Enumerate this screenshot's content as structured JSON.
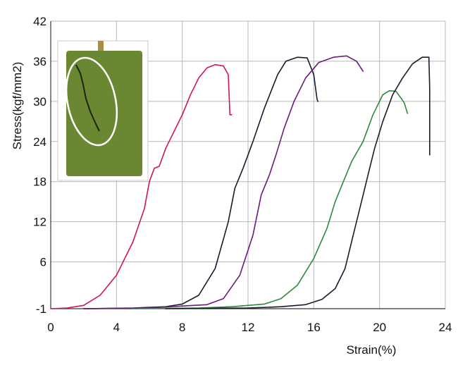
{
  "chart_data": {
    "type": "line",
    "title": "",
    "xlabel": "Strain(%)",
    "ylabel": "Stress(kgf/mm2)",
    "xlim": [
      0,
      24
    ],
    "ylim": [
      -1,
      42
    ],
    "xticks": [
      0,
      4,
      8,
      12,
      16,
      20,
      24
    ],
    "yticks": [
      -1,
      6,
      12,
      18,
      24,
      30,
      36,
      42
    ],
    "grid": true,
    "legend": "none",
    "series": [
      {
        "color": "#d0184b",
        "points": [
          [
            0,
            -1
          ],
          [
            1,
            -0.9
          ],
          [
            2,
            -0.5
          ],
          [
            3,
            1
          ],
          [
            4,
            4
          ],
          [
            5,
            9
          ],
          [
            5.7,
            14
          ],
          [
            6,
            18
          ],
          [
            6.3,
            20
          ],
          [
            6.6,
            20.3
          ],
          [
            7,
            23
          ],
          [
            8,
            28
          ],
          [
            8.5,
            31
          ],
          [
            9,
            33.5
          ],
          [
            9.5,
            35
          ],
          [
            10,
            35.5
          ],
          [
            10.5,
            35.3
          ],
          [
            10.8,
            34
          ],
          [
            10.9,
            28
          ],
          [
            11,
            28
          ]
        ]
      },
      {
        "color": "#1a1a2e",
        "points": [
          [
            2,
            -1
          ],
          [
            5,
            -0.9
          ],
          [
            7,
            -0.7
          ],
          [
            8,
            -0.3
          ],
          [
            9,
            1
          ],
          [
            10,
            5
          ],
          [
            10.8,
            12
          ],
          [
            11.2,
            17
          ],
          [
            11.7,
            20
          ],
          [
            12.3,
            24
          ],
          [
            13,
            29
          ],
          [
            13.8,
            34
          ],
          [
            14.3,
            36
          ],
          [
            15,
            36.6
          ],
          [
            15.6,
            36.5
          ],
          [
            16,
            34
          ],
          [
            16.2,
            30.3
          ],
          [
            16.25,
            30
          ]
        ]
      },
      {
        "color": "#6b1a7a",
        "points": [
          [
            2,
            -1
          ],
          [
            6,
            -0.9
          ],
          [
            8,
            -0.6
          ],
          [
            9.5,
            -0.4
          ],
          [
            10.5,
            0.5
          ],
          [
            11.5,
            4
          ],
          [
            12.3,
            10
          ],
          [
            12.8,
            16
          ],
          [
            13.3,
            19
          ],
          [
            13.7,
            22
          ],
          [
            14.2,
            26
          ],
          [
            14.8,
            30
          ],
          [
            15.5,
            33.5
          ],
          [
            16.3,
            35.8
          ],
          [
            17.2,
            36.6
          ],
          [
            18,
            36.8
          ],
          [
            18.6,
            36
          ],
          [
            19,
            34.5
          ]
        ]
      },
      {
        "color": "#2b8a3e",
        "points": [
          [
            5,
            -1
          ],
          [
            9,
            -0.9
          ],
          [
            11,
            -0.7
          ],
          [
            13,
            -0.3
          ],
          [
            14,
            0.5
          ],
          [
            15,
            2.5
          ],
          [
            16,
            6.5
          ],
          [
            16.8,
            11
          ],
          [
            17.3,
            15
          ],
          [
            17.8,
            18
          ],
          [
            18.3,
            21
          ],
          [
            19,
            24
          ],
          [
            19.6,
            28
          ],
          [
            20.2,
            31
          ],
          [
            20.6,
            31.6
          ],
          [
            21,
            31.5
          ],
          [
            21.3,
            30.5
          ],
          [
            21.5,
            29.8
          ],
          [
            21.7,
            28.2
          ]
        ]
      },
      {
        "color": "#1a1a2e",
        "points": [
          [
            7,
            -1
          ],
          [
            12,
            -0.9
          ],
          [
            14,
            -0.7
          ],
          [
            15.5,
            -0.4
          ],
          [
            16.5,
            0.4
          ],
          [
            17.3,
            2
          ],
          [
            17.9,
            5
          ],
          [
            18.4,
            10
          ],
          [
            18.9,
            15
          ],
          [
            19.3,
            19
          ],
          [
            19.7,
            23
          ],
          [
            20.2,
            27
          ],
          [
            20.8,
            31
          ],
          [
            21.4,
            33.5
          ],
          [
            22,
            35.6
          ],
          [
            22.6,
            36.6
          ],
          [
            23,
            36.6
          ],
          [
            23.05,
            32
          ],
          [
            23.05,
            22
          ]
        ]
      }
    ]
  },
  "inset": {
    "description": "photo-inset"
  }
}
